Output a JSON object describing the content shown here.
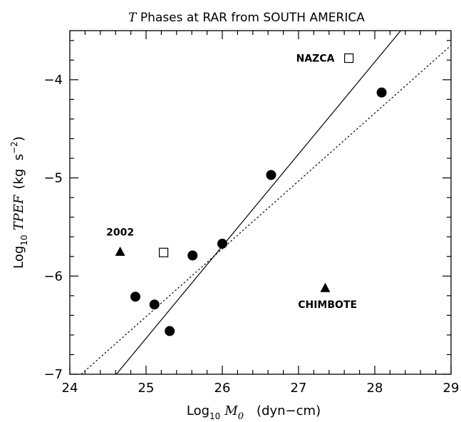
{
  "chart_data": {
    "type": "scatter",
    "title_pre": "T",
    "title_post": " Phases at RAR from SOUTH AMERICA",
    "xlabel": {
      "pre": "Log",
      "sub": "10",
      "var": "M",
      "varsub": "0",
      "unit": "(dyn−cm)"
    },
    "ylabel": {
      "pre": "Log",
      "sub": "10",
      "var": "TPEF",
      "unit": "(kg  s",
      "exp": "−2",
      "close": ")"
    },
    "xlim": [
      24,
      29
    ],
    "ylim": [
      -7,
      -3.5
    ],
    "xticks": [
      24,
      25,
      26,
      27,
      28,
      29
    ],
    "yticks": [
      -7,
      -6,
      -5,
      -4
    ],
    "ytick_labels": [
      "−7",
      "−6",
      "−5",
      "−4"
    ],
    "grid": false,
    "series": [
      {
        "marker": "circle-filled",
        "points": [
          {
            "x": 24.86,
            "y": -6.21
          },
          {
            "x": 25.11,
            "y": -6.29
          },
          {
            "x": 25.31,
            "y": -6.56
          },
          {
            "x": 25.61,
            "y": -5.79
          },
          {
            "x": 26.0,
            "y": -5.67
          },
          {
            "x": 26.64,
            "y": -4.97
          },
          {
            "x": 28.09,
            "y": -4.13
          }
        ]
      },
      {
        "marker": "square-open",
        "points": [
          {
            "x": 25.23,
            "y": -5.76
          },
          {
            "x": 27.66,
            "y": -3.78
          }
        ]
      },
      {
        "marker": "triangle-filled",
        "points": [
          {
            "x": 24.66,
            "y": -5.75
          },
          {
            "x": 27.35,
            "y": -6.12
          }
        ]
      }
    ],
    "fit_lines": [
      {
        "style": "solid",
        "points": [
          {
            "x": 24.61,
            "y": -7.0
          },
          {
            "x": 28.34,
            "y": -3.5
          }
        ]
      },
      {
        "style": "dotted",
        "points": [
          {
            "x": 24.15,
            "y": -7.0
          },
          {
            "x": 29.0,
            "y": -3.65
          }
        ]
      }
    ],
    "annotations": [
      {
        "text": "NAZCA",
        "x": 27.22,
        "y": -3.78
      },
      {
        "text": "2002",
        "x": 24.66,
        "y": -5.55
      },
      {
        "text": "CHIMBOTE",
        "x": 27.38,
        "y": -6.29
      }
    ]
  }
}
